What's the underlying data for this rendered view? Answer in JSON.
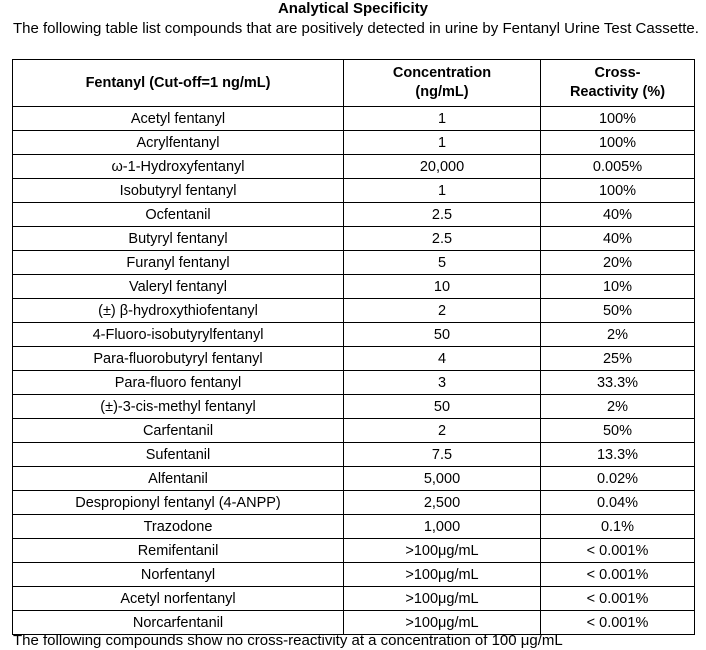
{
  "title": "Analytical Specificity",
  "intro": "The following table list compounds that are positively detected in urine by Fentanyl Urine Test Cassette.",
  "table": {
    "headers": {
      "compound": "Fentanyl (Cut-off=1 ng/mL)",
      "concentration_line1": "Concentration",
      "concentration_line2": "(ng/mL)",
      "cross_line1": "Cross-",
      "cross_line2": "Reactivity (%)"
    },
    "rows": [
      {
        "compound": "Acetyl fentanyl",
        "concentration": "1",
        "cross_reactivity": "100%"
      },
      {
        "compound": "Acrylfentanyl",
        "concentration": "1",
        "cross_reactivity": "100%"
      },
      {
        "compound": "ω-1-Hydroxyfentanyl",
        "concentration": "20,000",
        "cross_reactivity": "0.005%"
      },
      {
        "compound": "Isobutyryl fentanyl",
        "concentration": "1",
        "cross_reactivity": "100%"
      },
      {
        "compound": "Ocfentanil",
        "concentration": "2.5",
        "cross_reactivity": "40%"
      },
      {
        "compound": "Butyryl fentanyl",
        "concentration": "2.5",
        "cross_reactivity": "40%"
      },
      {
        "compound": "Furanyl fentanyl",
        "concentration": "5",
        "cross_reactivity": "20%"
      },
      {
        "compound": "Valeryl fentanyl",
        "concentration": "10",
        "cross_reactivity": "10%"
      },
      {
        "compound": "(±) β-hydroxythiofentanyl",
        "concentration": "2",
        "cross_reactivity": "50%"
      },
      {
        "compound": "4-Fluoro-isobutyrylfentanyl",
        "concentration": "50",
        "cross_reactivity": "2%"
      },
      {
        "compound": "Para-fluorobutyryl fentanyl",
        "concentration": "4",
        "cross_reactivity": "25%"
      },
      {
        "compound": "Para-fluoro fentanyl",
        "concentration": "3",
        "cross_reactivity": "33.3%"
      },
      {
        "compound": "(±)-3-cis-methyl fentanyl",
        "concentration": "50",
        "cross_reactivity": "2%"
      },
      {
        "compound": "Carfentanil",
        "concentration": "2",
        "cross_reactivity": "50%"
      },
      {
        "compound": "Sufentanil",
        "concentration": "7.5",
        "cross_reactivity": "13.3%"
      },
      {
        "compound": "Alfentanil",
        "concentration": "5,000",
        "cross_reactivity": "0.02%"
      },
      {
        "compound": "Despropionyl fentanyl (4-ANPP)",
        "concentration": "2,500",
        "cross_reactivity": "0.04%"
      },
      {
        "compound": "Trazodone",
        "concentration": "1,000",
        "cross_reactivity": "0.1%"
      },
      {
        "compound": "Remifentanil",
        "concentration": ">100μg/mL",
        "cross_reactivity": "< 0.001%"
      },
      {
        "compound": "Norfentanyl",
        "concentration": ">100μg/mL",
        "cross_reactivity": "< 0.001%"
      },
      {
        "compound": "Acetyl norfentanyl",
        "concentration": ">100μg/mL",
        "cross_reactivity": "< 0.001%"
      },
      {
        "compound": "Norcarfentanil",
        "concentration": ">100μg/mL",
        "cross_reactivity": "< 0.001%"
      }
    ]
  },
  "footer_fragment": "The following compounds show no cross-reactivity at a concentration of 100 μg/mL"
}
